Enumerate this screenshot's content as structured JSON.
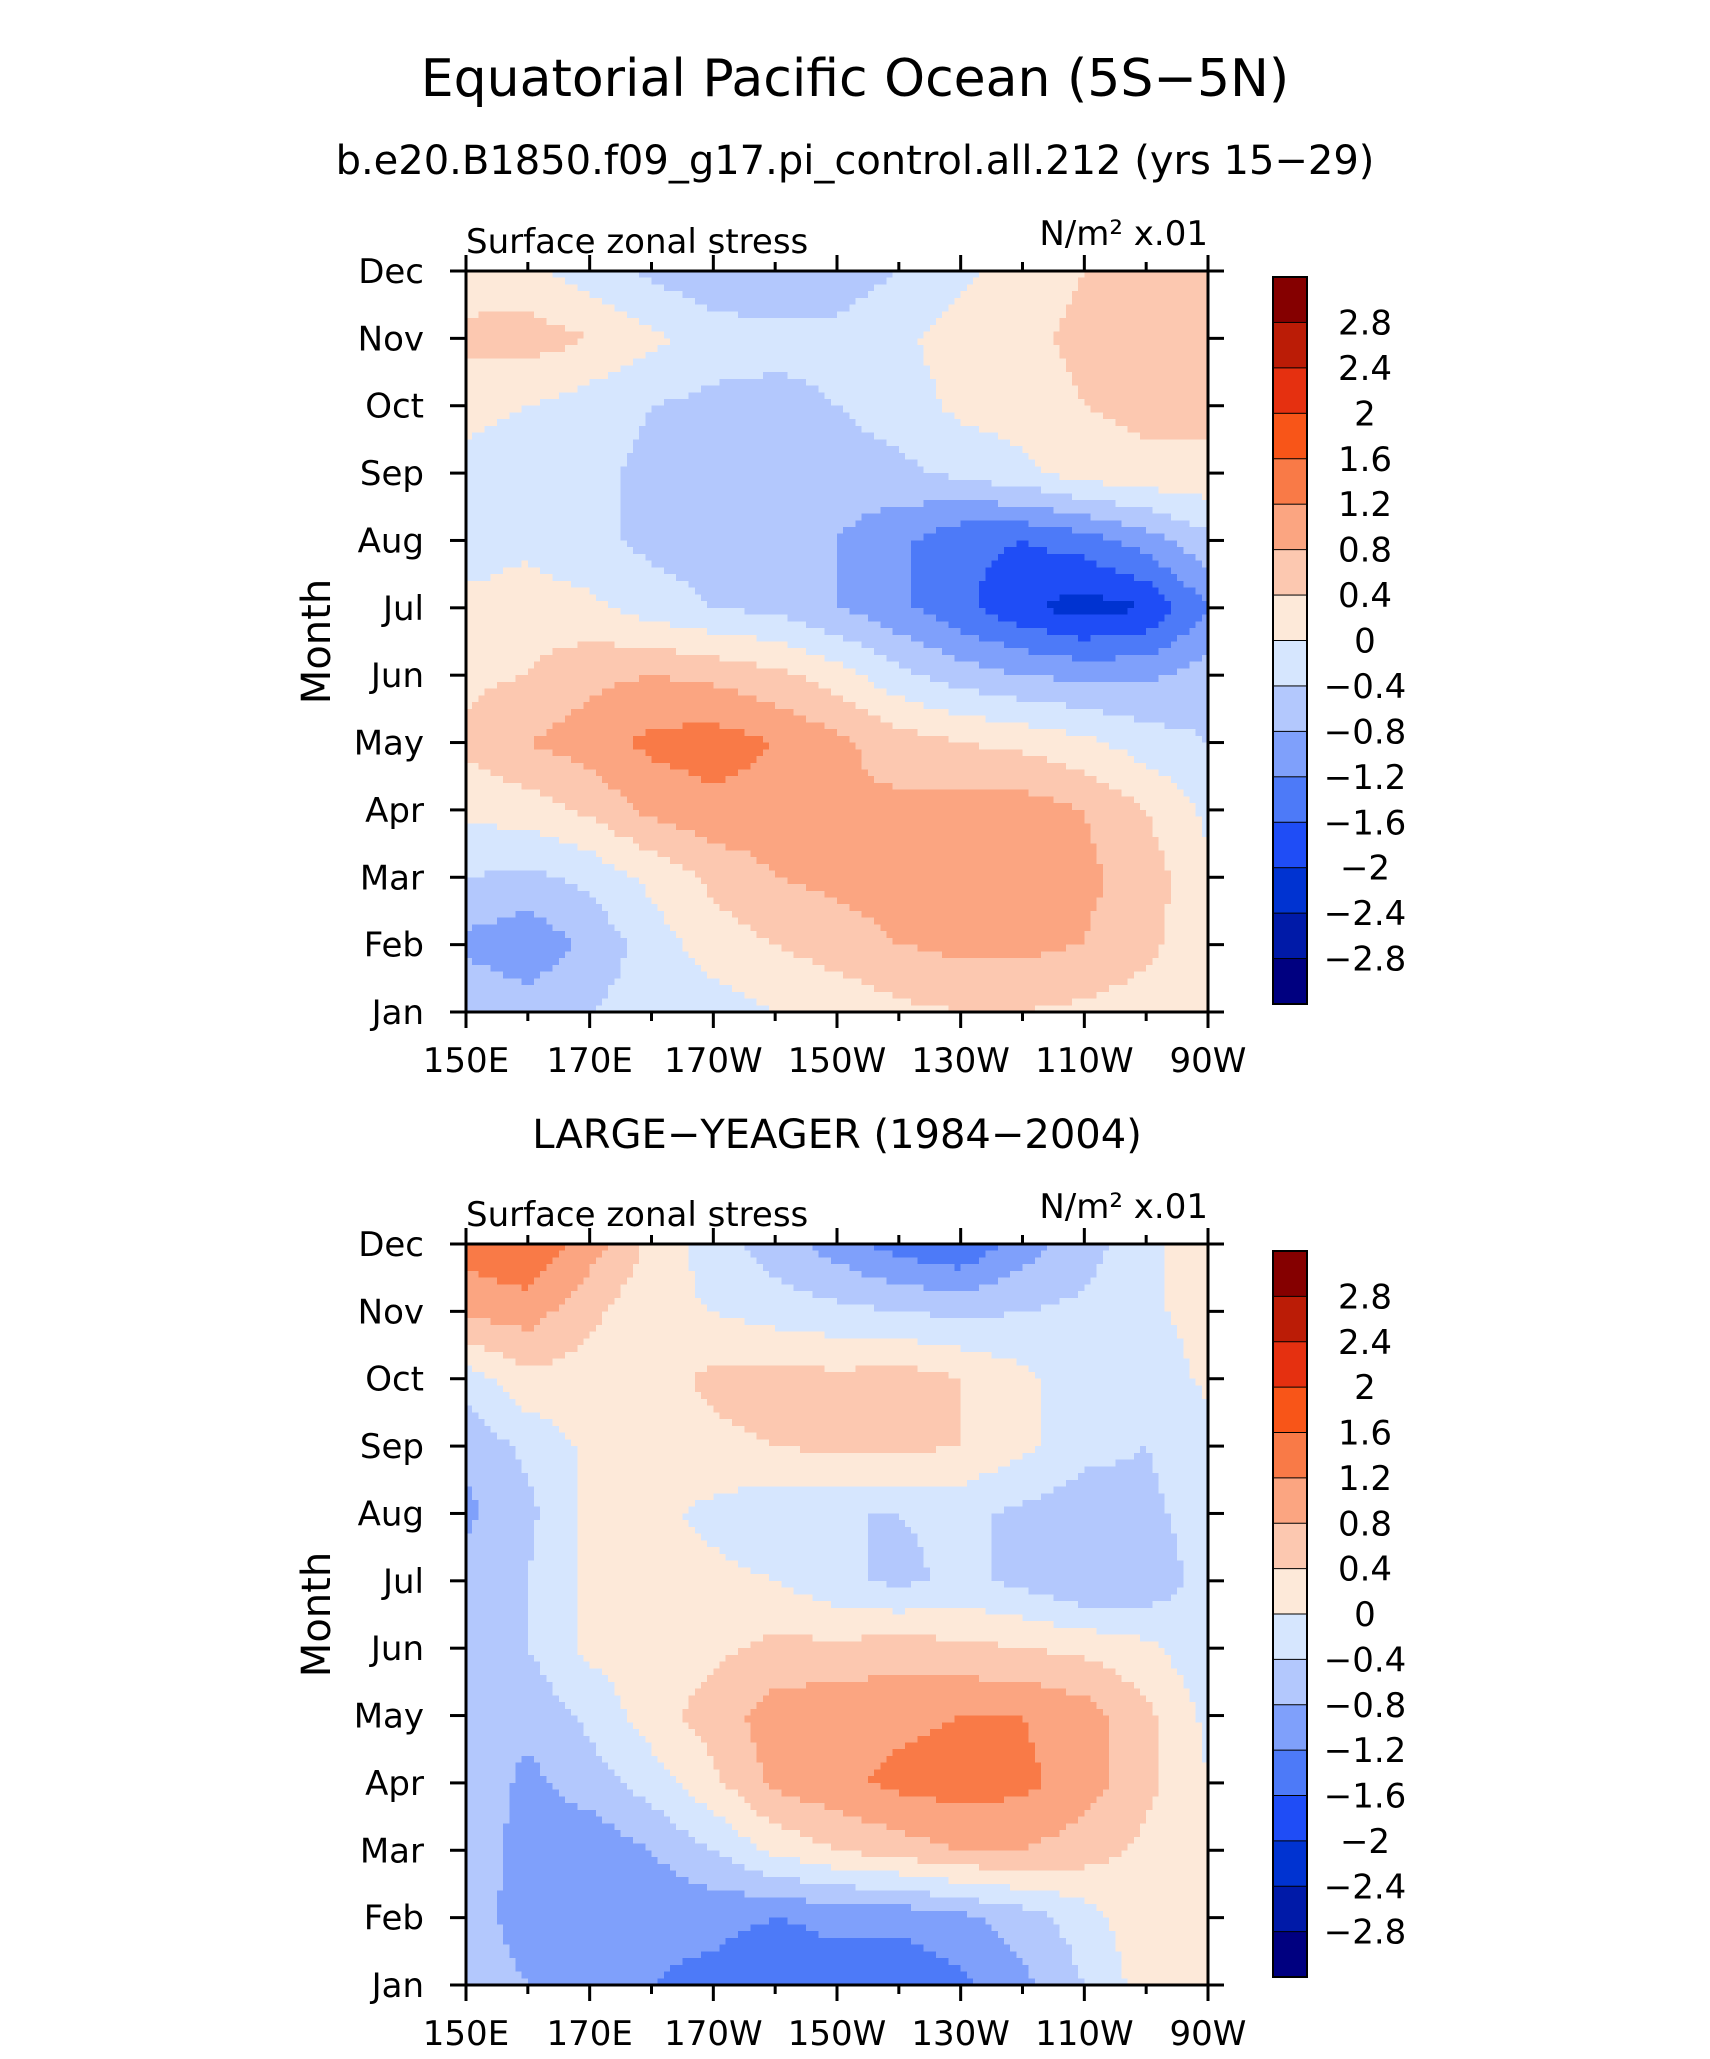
{
  "title": "Equatorial Pacific Ocean (5S−5N)",
  "subtitle": "b.e20.B1850.f09_g17.pi_control.all.212 (yrs 15−29)",
  "panel2_title": "LARGE−YEAGER (1984−2004)",
  "colors": [
    "#000080",
    "#001aa8",
    "#0033d1",
    "#1f4df6",
    "#4d7af8",
    "#7fa0fb",
    "#b3c8fd",
    "#d6e6fe",
    "#fde9d9",
    "#fcc8b0",
    "#fba581",
    "#f97a47",
    "#f85518",
    "#e53010",
    "#bb1c06",
    "#850000"
  ],
  "chart_data": [
    {
      "type": "heatmap",
      "title": "",
      "left_label": "Surface zonal stress",
      "right_label": "N/m² x.01",
      "xlabel": "",
      "ylabel": "Month",
      "x": [
        150,
        160,
        170,
        180,
        190,
        200,
        210,
        220,
        230,
        240,
        250,
        260,
        270
      ],
      "x_tick_labels": [
        "150E",
        "170E",
        "170W",
        "150W",
        "130W",
        "110W",
        "90W"
      ],
      "y_tick_labels": [
        "Jan",
        "Feb",
        "Mar",
        "Apr",
        "May",
        "Jun",
        "Jul",
        "Aug",
        "Sep",
        "Oct",
        "Nov",
        "Dec"
      ],
      "xlim": [
        150,
        270
      ],
      "ylim": [
        1,
        12
      ],
      "z": [
        [
          -0.4,
          -0.6,
          -0.4,
          -0.2,
          -0.2,
          0.0,
          0.1,
          0.3,
          0.4,
          0.4,
          0.3,
          0.2,
          0.1
        ],
        [
          -0.9,
          -1.1,
          -0.7,
          -0.2,
          0.2,
          0.4,
          0.6,
          0.8,
          0.9,
          0.9,
          0.8,
          0.5,
          0.1
        ],
        [
          -0.4,
          -0.5,
          -0.3,
          0.1,
          0.5,
          0.8,
          0.9,
          1.0,
          1.0,
          1.0,
          0.9,
          0.6,
          0.1
        ],
        [
          0.1,
          0.2,
          0.5,
          0.9,
          1.1,
          1.0,
          0.8,
          0.9,
          1.0,
          1.0,
          0.8,
          0.4,
          -0.1
        ],
        [
          0.5,
          0.8,
          1.0,
          1.3,
          1.4,
          1.2,
          0.9,
          0.6,
          0.4,
          0.3,
          0.1,
          -0.2,
          -0.4
        ],
        [
          0.3,
          0.4,
          0.7,
          0.8,
          0.7,
          0.5,
          0.2,
          -0.3,
          -0.6,
          -0.8,
          -0.9,
          -0.9,
          -0.6
        ],
        [
          0.1,
          0.2,
          0.1,
          -0.2,
          -0.4,
          -0.5,
          -0.8,
          -1.1,
          -1.5,
          -1.9,
          -2.2,
          -2.0,
          -1.2
        ],
        [
          -0.2,
          -0.1,
          -0.3,
          -0.5,
          -0.6,
          -0.6,
          -0.8,
          -1.1,
          -1.5,
          -1.6,
          -1.4,
          -1.0,
          -0.5
        ],
        [
          -0.1,
          -0.2,
          -0.3,
          -0.5,
          -0.6,
          -0.6,
          -0.6,
          -0.5,
          -0.3,
          -0.1,
          0.2,
          0.3,
          0.3
        ],
        [
          0.1,
          0.0,
          -0.2,
          -0.4,
          -0.5,
          -0.5,
          -0.4,
          -0.2,
          0.1,
          0.2,
          0.4,
          0.5,
          0.5
        ],
        [
          0.5,
          0.6,
          0.4,
          0.1,
          -0.2,
          -0.3,
          -0.3,
          -0.1,
          0.2,
          0.3,
          0.5,
          0.6,
          0.6
        ],
        [
          0.2,
          0.1,
          -0.2,
          -0.5,
          -0.7,
          -0.7,
          -0.6,
          -0.4,
          -0.1,
          0.2,
          0.4,
          0.5,
          0.5
        ]
      ],
      "colorbar_labels": [
        "2.8",
        "2.4",
        "2",
        "1.6",
        "1.2",
        "0.8",
        "0.4",
        "0",
        "−0.4",
        "−0.8",
        "−1.2",
        "−1.6",
        "−2",
        "−2.4",
        "−2.8"
      ],
      "levels": [
        -2.8,
        -2.4,
        -2.0,
        -1.6,
        -1.2,
        -0.8,
        -0.4,
        0.0,
        0.4,
        0.8,
        1.2,
        1.6,
        2.0,
        2.4,
        2.8
      ]
    },
    {
      "type": "heatmap",
      "title": "LARGE−YEAGER (1984−2004)",
      "left_label": "Surface zonal stress",
      "right_label": "N/m² x.01",
      "xlabel": "",
      "ylabel": "Month",
      "x": [
        150,
        160,
        170,
        180,
        190,
        200,
        210,
        220,
        230,
        240,
        250,
        260,
        270
      ],
      "x_tick_labels": [
        "150E",
        "170E",
        "170W",
        "150W",
        "130W",
        "110W",
        "90W"
      ],
      "y_tick_labels": [
        "Jan",
        "Feb",
        "Mar",
        "Apr",
        "May",
        "Jun",
        "Jul",
        "Aug",
        "Sep",
        "Oct",
        "Nov",
        "Dec"
      ],
      "xlim": [
        150,
        270
      ],
      "ylim": [
        1,
        12
      ],
      "z": [
        [
          -0.5,
          -0.8,
          -1.0,
          -1.2,
          -1.3,
          -1.5,
          -1.4,
          -1.5,
          -1.3,
          -0.9,
          -0.4,
          0.2,
          0.3
        ],
        [
          -0.6,
          -1.0,
          -1.2,
          -1.1,
          -1.1,
          -1.2,
          -1.1,
          -1.1,
          -0.9,
          -0.6,
          -0.2,
          0.3,
          0.3
        ],
        [
          -0.5,
          -1.0,
          -1.1,
          -0.8,
          -0.4,
          0.1,
          0.4,
          0.6,
          0.8,
          0.8,
          0.6,
          0.3,
          0.1
        ],
        [
          -0.5,
          -0.9,
          -0.6,
          -0.2,
          0.3,
          0.9,
          1.1,
          1.3,
          1.4,
          1.3,
          1.0,
          0.5,
          0.0
        ],
        [
          -0.6,
          -0.7,
          -0.3,
          0.2,
          0.6,
          1.0,
          1.1,
          1.1,
          1.2,
          1.2,
          1.0,
          0.5,
          -0.1
        ],
        [
          -0.4,
          -0.4,
          0.1,
          0.2,
          0.3,
          0.5,
          0.5,
          0.6,
          0.5,
          0.4,
          0.3,
          0.1,
          -0.3
        ],
        [
          -0.6,
          -0.4,
          0.1,
          0.2,
          0.1,
          0.0,
          -0.3,
          -0.5,
          -0.3,
          -0.5,
          -0.8,
          -0.7,
          -0.2
        ],
        [
          -0.9,
          -0.5,
          0.1,
          0.1,
          -0.1,
          -0.3,
          -0.4,
          -0.4,
          -0.3,
          -0.5,
          -0.6,
          -0.5,
          -0.2
        ],
        [
          -0.7,
          -0.3,
          0.1,
          0.2,
          0.3,
          0.4,
          0.5,
          0.5,
          0.4,
          0.1,
          -0.3,
          -0.4,
          -0.2
        ],
        [
          -0.2,
          0.3,
          0.2,
          0.2,
          0.5,
          0.6,
          0.5,
          0.6,
          0.4,
          0.1,
          -0.3,
          -0.3,
          0.1
        ],
        [
          0.9,
          1.0,
          0.5,
          0.1,
          0.0,
          -0.2,
          -0.3,
          -0.4,
          -0.5,
          -0.4,
          -0.3,
          -0.1,
          0.2
        ],
        [
          1.4,
          1.6,
          1.0,
          0.3,
          -0.2,
          -0.6,
          -1.0,
          -1.4,
          -1.6,
          -1.0,
          -0.6,
          -0.1,
          0.2
        ]
      ],
      "colorbar_labels": [
        "2.8",
        "2.4",
        "2",
        "1.6",
        "1.2",
        "0.8",
        "0.4",
        "0",
        "−0.4",
        "−0.8",
        "−1.2",
        "−1.6",
        "−2",
        "−2.4",
        "−2.8"
      ],
      "levels": [
        -2.8,
        -2.4,
        -2.0,
        -1.6,
        -1.2,
        -0.8,
        -0.4,
        0.0,
        0.4,
        0.8,
        1.2,
        1.6,
        2.0,
        2.4,
        2.8
      ]
    }
  ]
}
